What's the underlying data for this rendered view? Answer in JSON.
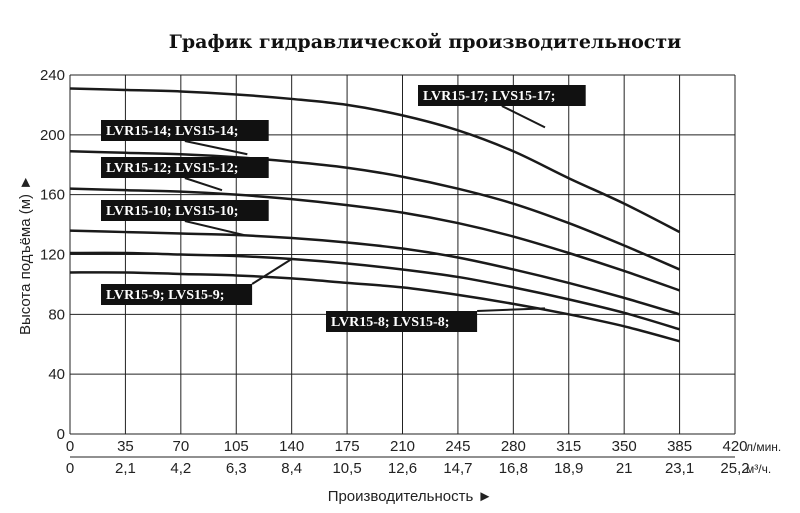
{
  "chart_data": {
    "type": "line",
    "title": "График гидравлической производительности",
    "xlabel": "Производительность ►",
    "ylabel": "Высота подъёма (м) ►",
    "x_unit_primary": "л/мин.",
    "x_unit_secondary": "м³/ч.",
    "xlim": [
      0,
      420
    ],
    "ylim": [
      0,
      240
    ],
    "x_ticks": [
      "0",
      "35",
      "70",
      "105",
      "140",
      "175",
      "210",
      "245",
      "280",
      "315",
      "350",
      "385",
      "420"
    ],
    "x_ticks_secondary": [
      "0",
      "2,1",
      "4,2",
      "6,3",
      "8,4",
      "10,5",
      "12,6",
      "14,7",
      "16,8",
      "18,9",
      "21",
      "23,1",
      "25,2"
    ],
    "y_ticks": [
      "0",
      "40",
      "80",
      "120",
      "160",
      "200",
      "240"
    ],
    "grid": true,
    "series": [
      {
        "name": "LVR15-17; LVS15-17;",
        "x": [
          0,
          35,
          70,
          105,
          140,
          175,
          210,
          245,
          280,
          315,
          350,
          385
        ],
        "y": [
          231,
          230,
          229,
          227,
          224,
          220,
          213,
          203,
          189,
          171,
          154,
          135
        ]
      },
      {
        "name": "LVR15-14; LVS15-14;",
        "x": [
          0,
          35,
          70,
          105,
          140,
          175,
          210,
          245,
          280,
          315,
          350,
          385
        ],
        "y": [
          189,
          188,
          187,
          185,
          182,
          178,
          172,
          164,
          154,
          141,
          126,
          110
        ]
      },
      {
        "name": "LVR15-12; LVS15-12;",
        "x": [
          0,
          35,
          70,
          105,
          140,
          175,
          210,
          245,
          280,
          315,
          350,
          385
        ],
        "y": [
          164,
          163,
          162,
          160,
          157,
          153,
          148,
          141,
          132,
          121,
          109,
          96
        ]
      },
      {
        "name": "LVR15-10; LVS15-10;",
        "x": [
          0,
          35,
          70,
          105,
          140,
          175,
          210,
          245,
          280,
          315,
          350,
          385
        ],
        "y": [
          136,
          135,
          134,
          133,
          131,
          128,
          124,
          118,
          110,
          101,
          91,
          80
        ]
      },
      {
        "name": "LVR15-9; LVS15-9;",
        "x": [
          0,
          35,
          70,
          105,
          140,
          175,
          210,
          245,
          280,
          315,
          350,
          385
        ],
        "y": [
          121,
          121,
          120,
          119,
          117,
          114,
          110,
          105,
          98,
          90,
          81,
          70
        ]
      },
      {
        "name": "LVR15-8; LVS15-8;",
        "x": [
          0,
          35,
          70,
          105,
          140,
          175,
          210,
          245,
          280,
          315,
          350,
          385
        ],
        "y": [
          108,
          108,
          107,
          106,
          104,
          101,
          98,
          93,
          87,
          80,
          72,
          62
        ]
      }
    ]
  }
}
